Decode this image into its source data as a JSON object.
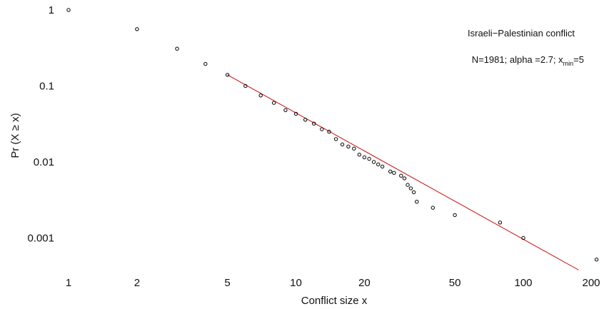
{
  "chart_data": {
    "type": "scatter",
    "title": "",
    "xlabel": "Conflict size x",
    "ylabel": "Pr (X ≥ x)",
    "xscale": "log",
    "yscale": "log",
    "xlim": [
      1,
      210
    ],
    "ylim": [
      0.00035,
      1
    ],
    "xticks": [
      1,
      2,
      5,
      10,
      20,
      50,
      100,
      200
    ],
    "xtick_labels": [
      "1",
      "2",
      "5",
      "10",
      "20",
      "50",
      "100",
      "200"
    ],
    "yticks": [
      1,
      0.1,
      0.01,
      0.001
    ],
    "ytick_labels": [
      "1",
      "0.1",
      "0.01",
      "0.001"
    ],
    "grid": false,
    "annotations": {
      "name": "Israeli−Palestinian conflict",
      "params_prefix": "N=1981; alpha =2.7; x",
      "params_sub": "min",
      "params_suffix": "=5"
    },
    "series": [
      {
        "type": "scatter",
        "points": [
          [
            1,
            1.0
          ],
          [
            2,
            0.56
          ],
          [
            3,
            0.31
          ],
          [
            4,
            0.195
          ],
          [
            5,
            0.14
          ],
          [
            6,
            0.1
          ],
          [
            7,
            0.075
          ],
          [
            8,
            0.06
          ],
          [
            9,
            0.048
          ],
          [
            10,
            0.043
          ],
          [
            11,
            0.036
          ],
          [
            12,
            0.032
          ],
          [
            13,
            0.027
          ],
          [
            14,
            0.025
          ],
          [
            15,
            0.02
          ],
          [
            16,
            0.017
          ],
          [
            17,
            0.016
          ],
          [
            18,
            0.015
          ],
          [
            19,
            0.0125
          ],
          [
            20,
            0.0115
          ],
          [
            21,
            0.011
          ],
          [
            22,
            0.01
          ],
          [
            23,
            0.0093
          ],
          [
            24,
            0.0087
          ],
          [
            26,
            0.0075
          ],
          [
            27,
            0.0072
          ],
          [
            29,
            0.0066
          ],
          [
            30,
            0.0061
          ],
          [
            31,
            0.005
          ],
          [
            32,
            0.0045
          ],
          [
            33,
            0.004
          ],
          [
            34,
            0.003
          ],
          [
            40,
            0.0025
          ],
          [
            50,
            0.002
          ],
          [
            79,
            0.0016
          ],
          [
            100,
            0.001
          ],
          [
            210,
            0.00052
          ]
        ]
      },
      {
        "type": "line",
        "color": "#cc2222",
        "points": [
          [
            5,
            0.14
          ],
          [
            175,
            0.00038
          ]
        ]
      }
    ]
  }
}
